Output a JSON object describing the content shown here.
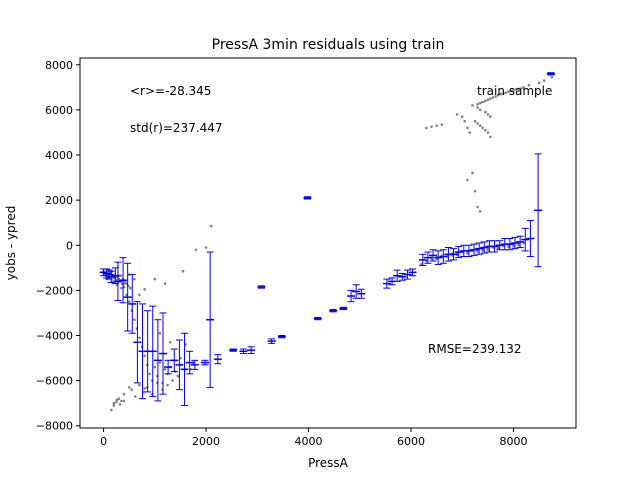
{
  "chart_data": {
    "type": "scatter",
    "title": "PressA 3min residuals using train",
    "xlabel": "PressA",
    "ylabel": "yobs - ypred",
    "xlim": [
      -460,
      9220
    ],
    "ylim": [
      -8100,
      8300
    ],
    "xticks": [
      0,
      2000,
      4000,
      6000,
      8000
    ],
    "yticks": [
      -8000,
      -6000,
      -4000,
      -2000,
      0,
      2000,
      4000,
      6000,
      8000
    ],
    "grid": false,
    "annotations": {
      "mean_r": "<r>=-28.345",
      "std_r": "std(r)=237.447",
      "sample": "train sample",
      "rmse": "RMSE=239.132"
    },
    "colors": {
      "points": "#808080",
      "errorbars": "#0000ff",
      "axes": "#000000"
    },
    "series": [
      {
        "kind": "points",
        "x": [
          0,
          20,
          40,
          60,
          80,
          100,
          120,
          150,
          180,
          200,
          220,
          240,
          260,
          280,
          300,
          320,
          340,
          360,
          380,
          400,
          420,
          450,
          480,
          520,
          60,
          100,
          140,
          180,
          220,
          260,
          300,
          350,
          400,
          450,
          500,
          550,
          600,
          650,
          700,
          750,
          800,
          850,
          900,
          950,
          1000,
          1050,
          1100,
          1150,
          1200,
          1250,
          1300,
          1350,
          1400,
          1450,
          1500,
          1600,
          1700,
          1750,
          150,
          200,
          250,
          300,
          350,
          400,
          550,
          620,
          700,
          780,
          850,
          950,
          1050,
          1150,
          1250,
          200,
          260,
          320,
          400,
          500,
          800,
          1000,
          1200,
          1550,
          1800,
          2000,
          2100,
          500,
          600,
          700,
          800,
          1100,
          1300,
          1500,
          1600,
          6200,
          6300,
          6400,
          6500,
          6600,
          6700,
          6800,
          6900,
          7000,
          7100,
          7200,
          7300,
          7400,
          7500,
          7600,
          7700,
          7800,
          7900,
          8000,
          8100,
          8200,
          6300,
          6500,
          6700,
          6900,
          7100,
          7300,
          7500,
          7700,
          7900,
          8100,
          6400,
          6600,
          6800,
          7000,
          7200,
          7400,
          7600,
          7800,
          8000,
          6500,
          6800,
          7100,
          7400,
          7700,
          8000,
          7200,
          7300,
          7350,
          7400,
          7450,
          7500,
          7550,
          7600,
          7650,
          7700,
          7750,
          7800,
          7850,
          7900,
          7950,
          8000,
          8050,
          8100,
          8150,
          8200,
          7300,
          7350,
          7450,
          7500,
          7550,
          7250,
          7300,
          7350,
          7400,
          7450,
          7500,
          7550,
          6900,
          7000,
          7050,
          7100,
          7150,
          6300,
          6400,
          6500,
          6600,
          7100,
          7200,
          7250,
          7300,
          7350,
          8300,
          8500,
          8600,
          8750
        ],
        "y": [
          -1150,
          -1250,
          -1350,
          -1200,
          -1300,
          -1280,
          -1400,
          -1200,
          -1350,
          -1450,
          -1300,
          -1550,
          -1400,
          -1650,
          -1500,
          -1600,
          -1350,
          -1700,
          -1500,
          -1850,
          -1600,
          -1700,
          -1800,
          -1900,
          -1500,
          -1350,
          -1250,
          -1600,
          -1450,
          -1750,
          -1350,
          -1900,
          -1700,
          -2200,
          -2500,
          -2900,
          -3300,
          -3700,
          -4100,
          -4500,
          -4900,
          -5300,
          -5700,
          -6000,
          -5400,
          -5800,
          -5200,
          -6100,
          -5500,
          -5700,
          -5400,
          -6000,
          -5600,
          -5800,
          -5300,
          -5500,
          -5500,
          -5200,
          -7300,
          -7100,
          -6950,
          -6800,
          -6900,
          -6600,
          -6400,
          -6700,
          -6200,
          -6500,
          -6300,
          -6600,
          -6100,
          -6400,
          -6200,
          -7000,
          -6850,
          -7050,
          -6900,
          -6300,
          -6350,
          -1500,
          -1700,
          -1150,
          -200,
          -100,
          850,
          -1300,
          -1500,
          -2200,
          -1950,
          -3900,
          -4300,
          -5000,
          -4400,
          -850,
          -700,
          -550,
          -520,
          -470,
          -420,
          -380,
          -330,
          -290,
          -260,
          -220,
          -180,
          -150,
          -120,
          -90,
          -60,
          -30,
          0,
          30,
          60,
          90,
          -700,
          -600,
          -500,
          -420,
          -350,
          -280,
          -200,
          -140,
          -80,
          0,
          -600,
          -480,
          -380,
          -290,
          -220,
          -150,
          -90,
          -20,
          40,
          -550,
          -450,
          -350,
          -250,
          -150,
          -50,
          6200,
          6250,
          6300,
          6350,
          6400,
          6450,
          6500,
          6550,
          6600,
          6650,
          6700,
          6720,
          6760,
          6800,
          6840,
          6880,
          6900,
          6930,
          6950,
          7000,
          6100,
          6000,
          5900,
          5800,
          5700,
          5500,
          5400,
          5300,
          5200,
          5100,
          5000,
          4800,
          5800,
          5700,
          5500,
          5200,
          5000,
          5200,
          5250,
          5300,
          5350,
          2900,
          3200,
          2400,
          1700,
          1500,
          7100,
          7200,
          7300,
          7450
        ]
      }
    ],
    "errorbars": {
      "x": [
        0,
        60,
        110,
        150,
        230,
        280,
        380,
        470,
        560,
        660,
        760,
        860,
        960,
        1060,
        1160,
        1260,
        1380,
        1480,
        1580,
        1680,
        1780,
        1980,
        2080,
        2230,
        2530,
        2730,
        2880,
        3080,
        3280,
        3480,
        3980,
        4180,
        4480,
        4680,
        4830,
        4930,
        5030,
        5530,
        5630,
        5730,
        5830,
        5930,
        6030,
        6230,
        6330,
        6430,
        6530,
        6630,
        6730,
        6830,
        6930,
        7030,
        7130,
        7230,
        7330,
        7430,
        7530,
        7630,
        7730,
        7830,
        7930,
        8030,
        8130,
        8230,
        8330,
        8480,
        8730
      ],
      "y": [
        -1200,
        -1250,
        -1300,
        -1400,
        -1350,
        -1600,
        -1550,
        -2300,
        -2600,
        -4300,
        -4700,
        -4700,
        -4700,
        -5100,
        -4800,
        -5400,
        -5100,
        -5300,
        -5500,
        -5200,
        -5300,
        -5200,
        -3300,
        -5050,
        -4650,
        -4700,
        -4650,
        -1850,
        -4250,
        -4050,
        2100,
        -3250,
        -2900,
        -2800,
        -2250,
        -2050,
        -2150,
        -1700,
        -1600,
        -1350,
        -1400,
        -1300,
        -1200,
        -650,
        -550,
        -450,
        -550,
        -500,
        -400,
        -400,
        -300,
        -250,
        -250,
        -200,
        -150,
        -100,
        -50,
        -50,
        0,
        50,
        50,
        100,
        150,
        250,
        300,
        1550,
        7600
      ],
      "err": [
        150,
        200,
        200,
        250,
        350,
        850,
        1000,
        1500,
        1300,
        1800,
        2100,
        1800,
        2000,
        1800,
        1800,
        300,
        500,
        1100,
        1600,
        500,
        200,
        100,
        3000,
        200,
        50,
        100,
        150,
        50,
        100,
        50,
        50,
        50,
        50,
        50,
        250,
        300,
        200,
        200,
        150,
        250,
        150,
        200,
        150,
        250,
        250,
        250,
        300,
        300,
        300,
        250,
        250,
        250,
        250,
        250,
        250,
        250,
        250,
        250,
        200,
        250,
        250,
        250,
        250,
        500,
        800,
        2500,
        50
      ]
    }
  }
}
